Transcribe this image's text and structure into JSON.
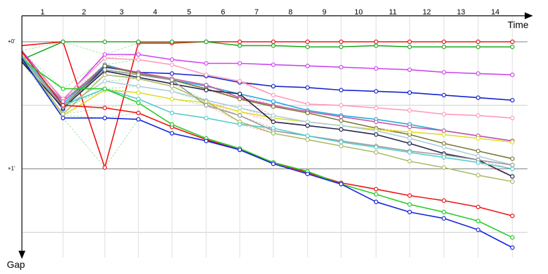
{
  "chart_data": {
    "type": "line",
    "xlabel": "Time",
    "ylabel": "Gap",
    "lap_labels": [
      "1",
      "2",
      "3",
      "4",
      "5",
      "6",
      "7",
      "8",
      "9",
      "10",
      "11",
      "12",
      "13",
      "14"
    ],
    "y_ticks": [
      {
        "value": 0,
        "label": "+0'"
      },
      {
        "value": 1,
        "label": "+1'"
      }
    ],
    "ylim": [
      0,
      1.55
    ],
    "grid": true,
    "series": [
      {
        "color": "#ee1111",
        "values": [
          0.03,
          0.0,
          0.99,
          0.01,
          0.01,
          0.0,
          0.0,
          0.0,
          0.0,
          0.0,
          0.0,
          0.0,
          0.0,
          0.0,
          0.0
        ]
      },
      {
        "color": "#22aa22",
        "values": [
          0.14,
          0.0,
          0.0,
          0.0,
          0.0,
          0.0,
          0.03,
          0.03,
          0.04,
          0.04,
          0.03,
          0.04,
          0.04,
          0.04,
          0.04
        ]
      },
      {
        "color": "#cc44ee",
        "values": [
          0.07,
          0.46,
          0.1,
          0.1,
          0.14,
          0.17,
          0.17,
          0.18,
          0.19,
          0.2,
          0.21,
          0.22,
          0.24,
          0.25,
          0.26
        ]
      },
      {
        "color": "#1122cc",
        "values": [
          0.12,
          0.53,
          0.2,
          0.24,
          0.25,
          0.27,
          0.32,
          0.35,
          0.36,
          0.38,
          0.39,
          0.4,
          0.42,
          0.44,
          0.46
        ]
      },
      {
        "color": "#ff99bb",
        "values": [
          0.09,
          0.45,
          0.13,
          0.14,
          0.18,
          0.26,
          0.31,
          0.42,
          0.49,
          0.5,
          0.52,
          0.54,
          0.57,
          0.58,
          0.6
        ]
      },
      {
        "color": "#22aadd",
        "values": [
          0.11,
          0.49,
          0.18,
          0.25,
          0.3,
          0.35,
          0.41,
          0.47,
          0.54,
          0.58,
          0.61,
          0.65,
          0.7,
          0.74,
          0.78
        ]
      },
      {
        "color": "#cc55aa",
        "values": [
          0.14,
          0.47,
          0.19,
          0.24,
          0.29,
          0.34,
          0.44,
          0.5,
          0.55,
          0.59,
          0.63,
          0.67,
          0.7,
          0.74,
          0.78
        ]
      },
      {
        "color": "#777733",
        "values": [
          0.15,
          0.51,
          0.19,
          0.25,
          0.3,
          0.37,
          0.45,
          0.51,
          0.56,
          0.62,
          0.68,
          0.73,
          0.8,
          0.86,
          0.92
        ]
      },
      {
        "color": "#dddd22",
        "values": [
          0.1,
          0.58,
          0.38,
          0.4,
          0.45,
          0.48,
          0.55,
          0.6,
          0.63,
          0.66,
          0.69,
          0.71,
          0.73,
          0.76,
          0.79
        ]
      },
      {
        "color": "#aaccdd",
        "values": [
          0.13,
          0.52,
          0.31,
          0.35,
          0.39,
          0.46,
          0.52,
          0.58,
          0.63,
          0.66,
          0.7,
          0.76,
          0.83,
          0.9,
          0.97
        ]
      },
      {
        "color": "#22224a",
        "values": [
          0.16,
          0.52,
          0.23,
          0.28,
          0.33,
          0.38,
          0.41,
          0.63,
          0.66,
          0.69,
          0.73,
          0.8,
          0.88,
          0.93,
          1.06
        ]
      },
      {
        "color": "#999999",
        "values": [
          0.12,
          0.51,
          0.22,
          0.26,
          0.3,
          0.5,
          0.58,
          0.7,
          0.74,
          0.78,
          0.82,
          0.86,
          0.89,
          0.93,
          0.97
        ]
      },
      {
        "color": "#aabb66",
        "values": [
          0.13,
          0.57,
          0.26,
          0.29,
          0.35,
          0.47,
          0.63,
          0.72,
          0.77,
          0.82,
          0.87,
          0.94,
          0.99,
          1.05,
          1.1
        ]
      },
      {
        "color": "#55cccc",
        "values": [
          0.11,
          0.5,
          0.37,
          0.45,
          0.56,
          0.6,
          0.65,
          0.68,
          0.74,
          0.79,
          0.83,
          0.87,
          0.91,
          0.95,
          1.0
        ]
      },
      {
        "color": "#ee1111",
        "values": [
          0.08,
          0.5,
          0.52,
          0.56,
          0.67,
          0.77,
          0.85,
          0.95,
          1.03,
          1.11,
          1.16,
          1.21,
          1.25,
          1.3,
          1.37
        ]
      },
      {
        "color": "#22cc22",
        "values": [
          0.14,
          0.37,
          0.37,
          0.48,
          0.65,
          0.76,
          0.84,
          0.95,
          1.02,
          1.12,
          1.2,
          1.28,
          1.34,
          1.41,
          1.54
        ]
      },
      {
        "color": "#1122dd",
        "values": [
          0.13,
          0.6,
          0.6,
          0.61,
          0.72,
          0.78,
          0.85,
          0.96,
          1.04,
          1.12,
          1.26,
          1.34,
          1.39,
          1.48,
          1.62
        ]
      }
    ]
  }
}
